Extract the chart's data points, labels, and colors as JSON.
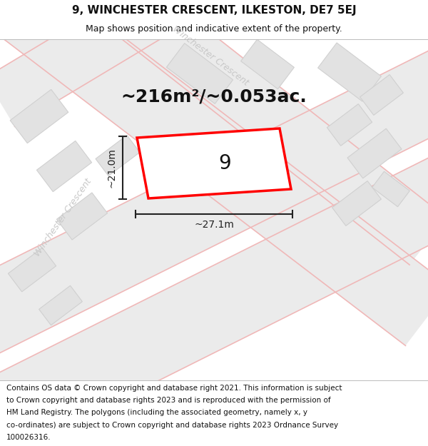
{
  "title_line1": "9, WINCHESTER CRESCENT, ILKESTON, DE7 5EJ",
  "title_line2": "Map shows position and indicative extent of the property.",
  "area_text": "~216m²/~0.053ac.",
  "plot_number": "9",
  "dim_width": "~27.1m",
  "dim_height": "~21.0m",
  "footer_lines": [
    "Contains OS data © Crown copyright and database right 2021. This information is subject",
    "to Crown copyright and database rights 2023 and is reproduced with the permission of",
    "HM Land Registry. The polygons (including the associated geometry, namely x, y",
    "co-ordinates) are subject to Crown copyright and database rights 2023 Ordnance Survey",
    "100026316."
  ],
  "bg_color": "#ffffff",
  "map_bg": "#f0f0f0",
  "road_fill": "#ebebeb",
  "road_line": "#f0b8b8",
  "bld_fill": "#e2e2e2",
  "bld_edge": "#d0d0d0",
  "plot_stroke": "#ff0000",
  "plot_fill": "#ffffff",
  "street_color": "#c8c8c8",
  "dim_color": "#222222",
  "text_color": "#111111",
  "title_fs": 11,
  "sub_fs": 9,
  "area_fs": 18,
  "num_fs": 20,
  "dim_fs": 10,
  "street_fs": 9,
  "footer_fs": 7.5
}
